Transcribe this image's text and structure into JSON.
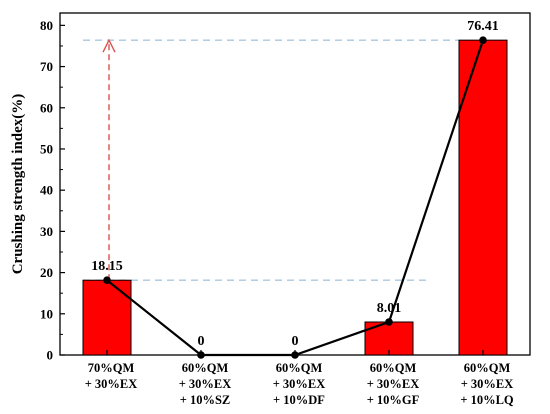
{
  "chart_data": {
    "type": "bar",
    "categories": [
      [
        "70%QM",
        "+ 30%EX"
      ],
      [
        "60%QM",
        "+ 30%EX",
        "+ 10%SZ"
      ],
      [
        "60%QM",
        "+ 30%EX",
        "+ 10%DF"
      ],
      [
        "60%QM",
        "+ 30%EX",
        "+ 10%GF"
      ],
      [
        "60%QM",
        "+ 30%EX",
        "+ 10%LQ"
      ]
    ],
    "values": [
      18.15,
      0,
      0,
      8.01,
      76.41
    ],
    "data_labels": [
      "18.15",
      "0",
      "0",
      "8.01",
      "76.41"
    ],
    "ylabel": "Crushing strength index(%)",
    "ylim": [
      0,
      83
    ],
    "yticks": [
      0,
      10,
      20,
      30,
      40,
      50,
      60,
      70,
      80
    ],
    "bar_color": "#ff0000",
    "line_color": "#000000",
    "overlay_line": true,
    "reference_lines": [
      {
        "value": 18.15,
        "color": "#a6c8e0",
        "style": "dashed"
      },
      {
        "value": 76.41,
        "color": "#a6c8e0",
        "style": "dashed"
      }
    ],
    "arrow": {
      "from": 18.15,
      "to": 76.41,
      "color": "#d9534f",
      "style": "dashed"
    },
    "grid": false
  }
}
